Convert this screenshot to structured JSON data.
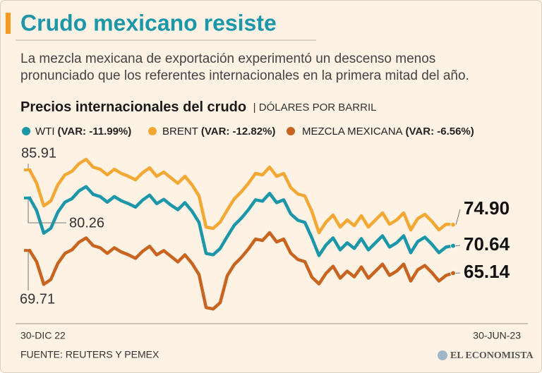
{
  "chart_data": {
    "type": "line",
    "title": "Crudo mexicano resiste",
    "subtitle": [
      "La mezcla mexicana de exportación experimentó un descenso menos",
      "pronunciado que los referentes internacionales en la primera mitad del año."
    ],
    "chart_title": "Precios internacionales del crudo",
    "unit_label": "| DÓLARES POR BARRIL",
    "source": "FUENTE: REUTERS Y PEMEX",
    "brand": "EL ECONOMISTA",
    "categories": [
      "30-DIC 22",
      null,
      null,
      null,
      null,
      null,
      null,
      null,
      null,
      null,
      null,
      null,
      null,
      null,
      null,
      null,
      null,
      null,
      null,
      null,
      null,
      null,
      null,
      null,
      null,
      null,
      null,
      null,
      null,
      null,
      null,
      null,
      null,
      null,
      null,
      null,
      null,
      null,
      null,
      null,
      null,
      null,
      null,
      null,
      null,
      null,
      null,
      null,
      null,
      null,
      null,
      null,
      null,
      null,
      null,
      null,
      null,
      null,
      null,
      null,
      "30-JUN-23"
    ],
    "ylim": [
      57,
      89
    ],
    "series": [
      {
        "name": "WTI",
        "var_label": "(VAR: -11.99%)",
        "color": "#1b97a9",
        "values": [
          80.26,
          77.71,
          73.18,
          74.17,
          77.43,
          79.42,
          80.13,
          81.69,
          82.54,
          80.98,
          80.55,
          79.42,
          80.55,
          79.7,
          79.13,
          78.42,
          79.84,
          80.84,
          79.13,
          79.98,
          78.85,
          77.91,
          79.33,
          77.63,
          75.36,
          69.12,
          68.84,
          70.11,
          72.52,
          74.79,
          76.21,
          77.91,
          79.9,
          79.62,
          81.18,
          79.33,
          79.9,
          77.06,
          75.79,
          75.36,
          72.24,
          68.69,
          70.81,
          72.23,
          69.82,
          71.24,
          70.1,
          72.09,
          69.82,
          71.24,
          72.66,
          70.39,
          71.24,
          72.66,
          69.25,
          71.52,
          72.37,
          70.96,
          69.25,
          70.39,
          70.64
        ],
        "value_labels": [
          "80.26",
          null,
          null,
          null,
          null,
          null,
          null,
          null,
          null,
          null,
          null,
          null,
          null,
          null,
          null,
          null,
          null,
          null,
          null,
          null,
          null,
          null,
          null,
          null,
          null,
          null,
          null,
          null,
          null,
          null,
          null,
          null,
          null,
          null,
          null,
          null,
          null,
          null,
          null,
          null,
          null,
          null,
          null,
          null,
          null,
          null,
          null,
          null,
          null,
          null,
          null,
          null,
          null,
          null,
          null,
          null,
          null,
          null,
          null,
          null,
          "70.64"
        ]
      },
      {
        "name": "BRENT",
        "var_label": "(VAR: -12.82%)",
        "color": "#f4a834",
        "values": [
          85.91,
          83.21,
          78.68,
          79.67,
          82.93,
          84.92,
          85.63,
          87.19,
          88.04,
          86.48,
          86.05,
          84.92,
          86.05,
          85.2,
          84.63,
          83.92,
          85.34,
          86.34,
          84.63,
          85.48,
          84.35,
          83.21,
          84.63,
          82.93,
          80.66,
          74.42,
          74.14,
          75.41,
          77.82,
          80.09,
          81.51,
          83.21,
          85.2,
          84.92,
          86.48,
          84.63,
          85.2,
          82.36,
          81.09,
          80.66,
          77.54,
          73.29,
          75.41,
          76.83,
          74.42,
          75.84,
          74.7,
          76.69,
          74.42,
          75.84,
          77.26,
          74.99,
          75.84,
          77.26,
          73.85,
          76.12,
          76.97,
          75.56,
          73.85,
          74.99,
          74.9
        ],
        "value_labels": [
          "85.91",
          null,
          null,
          null,
          null,
          null,
          null,
          null,
          null,
          null,
          null,
          null,
          null,
          null,
          null,
          null,
          null,
          null,
          null,
          null,
          null,
          null,
          null,
          null,
          null,
          null,
          null,
          null,
          null,
          null,
          null,
          null,
          null,
          null,
          null,
          null,
          null,
          null,
          null,
          null,
          null,
          null,
          null,
          null,
          null,
          null,
          null,
          null,
          null,
          null,
          null,
          null,
          null,
          null,
          null,
          null,
          null,
          null,
          null,
          null,
          "74.90"
        ]
      },
      {
        "name": "MEZCLA MEXICANA",
        "var_label": "(VAR: -6.56%)",
        "color": "#c8641f",
        "values": [
          69.71,
          67.41,
          62.88,
          63.87,
          67.13,
          69.12,
          69.83,
          71.39,
          72.24,
          70.68,
          70.25,
          69.12,
          70.25,
          69.4,
          68.83,
          68.12,
          69.54,
          70.54,
          68.83,
          69.68,
          68.55,
          67.41,
          68.83,
          67.13,
          64.86,
          58.22,
          57.94,
          59.21,
          64.62,
          66.89,
          68.31,
          70.01,
          72.0,
          71.72,
          73.28,
          71.43,
          72.0,
          69.16,
          67.89,
          67.46,
          64.34,
          62.99,
          65.11,
          66.53,
          64.12,
          65.54,
          64.4,
          66.39,
          64.12,
          65.54,
          66.96,
          64.69,
          65.54,
          66.96,
          63.55,
          65.82,
          66.67,
          65.26,
          63.55,
          64.69,
          65.14
        ],
        "value_labels": [
          "69.71",
          null,
          null,
          null,
          null,
          null,
          null,
          null,
          null,
          null,
          null,
          null,
          null,
          null,
          null,
          null,
          null,
          null,
          null,
          null,
          null,
          null,
          null,
          null,
          null,
          null,
          null,
          null,
          null,
          null,
          null,
          null,
          null,
          null,
          null,
          null,
          null,
          null,
          null,
          null,
          null,
          null,
          null,
          null,
          null,
          null,
          null,
          null,
          null,
          null,
          null,
          null,
          null,
          null,
          null,
          null,
          null,
          null,
          null,
          null,
          "65.14"
        ]
      }
    ]
  }
}
